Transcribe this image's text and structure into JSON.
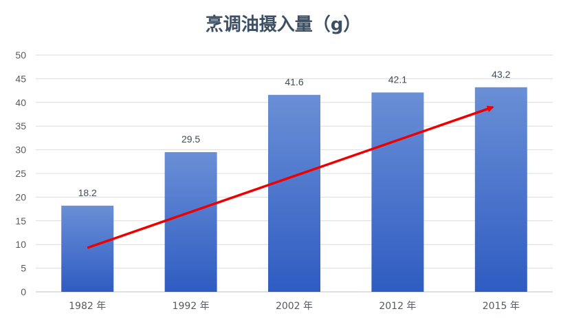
{
  "chart_data": {
    "type": "bar",
    "title": "烹调油摄入量（g）",
    "categories": [
      "1982 年",
      "1992 年",
      "2002 年",
      "2012 年",
      "2015 年"
    ],
    "values": [
      18.2,
      29.5,
      41.6,
      42.1,
      43.2
    ],
    "data_labels": [
      "18.2",
      "29.5",
      "41.6",
      "42.1",
      "43.2"
    ],
    "ylim": [
      0,
      50
    ],
    "yticks": [
      "0",
      "5",
      "10",
      "15",
      "20",
      "25",
      "30",
      "35",
      "40",
      "45",
      "50"
    ],
    "grid": true,
    "bar_color_top": "#6a8fd6",
    "bar_color_bottom": "#2f5cc2",
    "trend_arrow": {
      "from_value": 9.3,
      "to_value": 39.0,
      "color": "#ee0000"
    }
  }
}
